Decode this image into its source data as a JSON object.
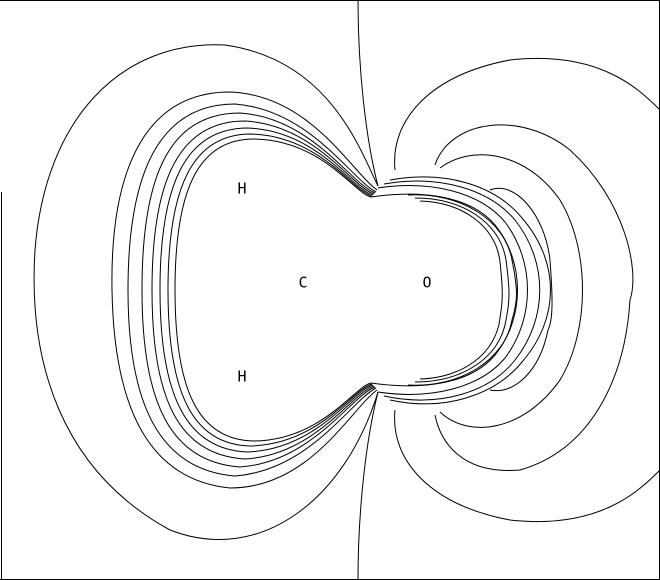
{
  "figure": {
    "kind": "electron density contour plot",
    "line_color": "#000000",
    "background_color": "#ffffff",
    "atoms": [
      {
        "id": "h-upper",
        "label": "H"
      },
      {
        "id": "c-center",
        "label": "C"
      },
      {
        "id": "o-right",
        "label": "O"
      },
      {
        "id": "h-lower",
        "label": "H"
      }
    ]
  }
}
